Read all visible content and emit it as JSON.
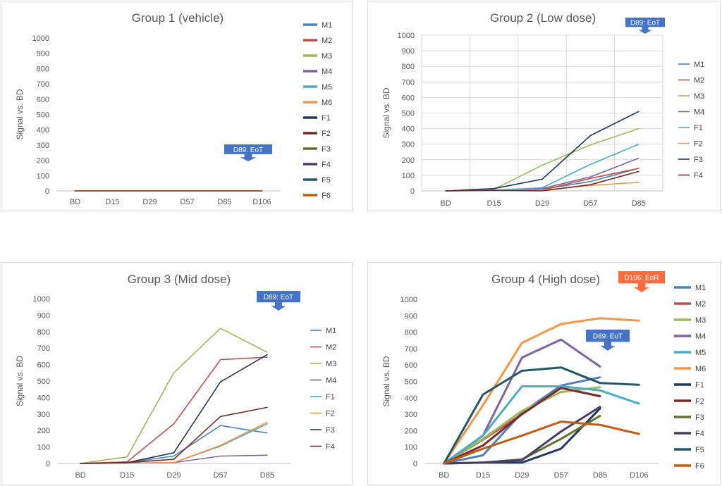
{
  "chart_data": [
    {
      "type": "line",
      "title": "Group 1 (vehicle)",
      "ylabel": "Signal  vs. BD",
      "xlabel": "",
      "categories": [
        "BD",
        "D15",
        "D29",
        "D57",
        "D85",
        "D106"
      ],
      "ylim": [
        0,
        1000
      ],
      "yticks": [
        0,
        100,
        200,
        300,
        400,
        500,
        600,
        700,
        800,
        900,
        1000
      ],
      "grid": "none",
      "legend": "right",
      "annotation": {
        "text": "D89: EoT",
        "color": "#4472c4",
        "position": "between D85 and D106"
      },
      "series": [
        {
          "name": "M1",
          "color": "#4f81bd",
          "values": [
            0,
            0,
            0,
            0,
            0,
            0
          ]
        },
        {
          "name": "M2",
          "color": "#c0504d",
          "values": [
            0,
            0,
            0,
            0,
            0,
            0
          ]
        },
        {
          "name": "M3",
          "color": "#9bbb59",
          "values": [
            0,
            0,
            0,
            0,
            0,
            0
          ]
        },
        {
          "name": "M4",
          "color": "#8064a2",
          "values": [
            0,
            0,
            0,
            0,
            0,
            0
          ]
        },
        {
          "name": "M5",
          "color": "#4bacc6",
          "values": [
            0,
            0,
            0,
            0,
            0,
            0
          ]
        },
        {
          "name": "M6",
          "color": "#f79646",
          "values": [
            0,
            0,
            0,
            0,
            0,
            0
          ]
        },
        {
          "name": "F1",
          "color": "#1f3864",
          "values": [
            0,
            0,
            0,
            0,
            0,
            0
          ]
        },
        {
          "name": "F2",
          "color": "#772c2a",
          "values": [
            0,
            0,
            0,
            0,
            0,
            0
          ]
        },
        {
          "name": "F3",
          "color": "#5f7530",
          "values": [
            0,
            0,
            0,
            0,
            0,
            0
          ]
        },
        {
          "name": "F4",
          "color": "#4d3b62",
          "values": [
            0,
            0,
            0,
            0,
            0,
            0
          ]
        },
        {
          "name": "F5",
          "color": "#215868",
          "values": [
            0,
            0,
            0,
            0,
            0,
            0
          ]
        },
        {
          "name": "F6",
          "color": "#c55a11",
          "values": [
            0,
            0,
            0,
            0,
            0,
            0
          ]
        }
      ]
    },
    {
      "type": "line",
      "title": "Group 2 (Low dose)",
      "ylabel": "Signal  vs. BD",
      "xlabel": "",
      "categories": [
        "BD",
        "D15",
        "D29",
        "D57",
        "D85"
      ],
      "ylim": [
        0,
        1000
      ],
      "yticks": [
        0,
        100,
        200,
        300,
        400,
        500,
        600,
        700,
        800,
        900,
        1000
      ],
      "grid": "horizontal and vertical",
      "legend": "right",
      "annotation": {
        "text": "D89: EoT",
        "color": "#4472c4",
        "position": "above D85"
      },
      "series": [
        {
          "name": "M1",
          "color": "#4f81bd",
          "values": [
            0,
            5,
            10,
            60,
            145
          ]
        },
        {
          "name": "M2",
          "color": "#c0504d",
          "values": [
            0,
            3,
            5,
            80,
            145
          ]
        },
        {
          "name": "M3",
          "color": "#9bbb59",
          "values": [
            0,
            10,
            165,
            295,
            400
          ]
        },
        {
          "name": "M4",
          "color": "#8064a2",
          "values": [
            0,
            5,
            15,
            90,
            210
          ]
        },
        {
          "name": "F1",
          "color": "#4bacc6",
          "values": [
            0,
            5,
            20,
            170,
            300
          ]
        },
        {
          "name": "F2",
          "color": "#f79646",
          "values": [
            0,
            3,
            5,
            35,
            55
          ]
        },
        {
          "name": "F3",
          "color": "#1f3864",
          "values": [
            0,
            15,
            75,
            355,
            510
          ]
        },
        {
          "name": "F4",
          "color": "#772c2a",
          "values": [
            0,
            3,
            0,
            40,
            125
          ]
        }
      ]
    },
    {
      "type": "line",
      "title": "Group 3 (Mid dose)",
      "ylabel": "Signal  vs. BD",
      "xlabel": "",
      "categories": [
        "BD",
        "D15",
        "D29",
        "D57",
        "D85"
      ],
      "ylim": [
        0,
        1000
      ],
      "yticks": [
        0,
        100,
        200,
        300,
        400,
        500,
        600,
        700,
        800,
        900,
        1000
      ],
      "grid": "none",
      "legend": "right",
      "annotation": {
        "text": "D89: EoT",
        "color": "#4472c4",
        "position": "above D85"
      },
      "series": [
        {
          "name": "M1",
          "color": "#4f81bd",
          "values": [
            0,
            5,
            45,
            230,
            185
          ]
        },
        {
          "name": "M2",
          "color": "#c0504d",
          "values": [
            0,
            10,
            240,
            630,
            645
          ]
        },
        {
          "name": "M3",
          "color": "#9bbb59",
          "values": [
            0,
            40,
            550,
            820,
            675
          ]
        },
        {
          "name": "M4",
          "color": "#8064a2",
          "values": [
            0,
            2,
            5,
            45,
            50
          ]
        },
        {
          "name": "F1",
          "color": "#4bacc6",
          "values": [
            0,
            2,
            5,
            105,
            240
          ]
        },
        {
          "name": "F2",
          "color": "#f79646",
          "values": [
            0,
            2,
            5,
            110,
            250
          ]
        },
        {
          "name": "F3",
          "color": "#1f3864",
          "values": [
            0,
            5,
            65,
            495,
            660
          ]
        },
        {
          "name": "F4",
          "color": "#772c2a",
          "values": [
            0,
            5,
            25,
            285,
            340
          ]
        }
      ]
    },
    {
      "type": "line",
      "title": "Group 4 (High dose)",
      "ylabel": "Signal  vs. BD",
      "xlabel": "",
      "categories": [
        "BD",
        "D15",
        "D29",
        "D57",
        "D85",
        "D106"
      ],
      "ylim": [
        0,
        1000
      ],
      "yticks": [
        0,
        100,
        200,
        300,
        400,
        500,
        600,
        700,
        800,
        900,
        1000
      ],
      "grid": "none",
      "legend": "right",
      "annotations": [
        {
          "text": "D89: EoT",
          "color": "#4472c4",
          "position": "above D85"
        },
        {
          "text": "D106: EoR",
          "color": "#ff6d3f",
          "position": "above D106"
        }
      ],
      "series": [
        {
          "name": "M1",
          "color": "#4f81bd",
          "values": [
            0,
            50,
            310,
            475,
            525,
            null
          ]
        },
        {
          "name": "M2",
          "color": "#c0504d",
          "values": [
            0,
            145,
            300,
            460,
            410,
            null
          ]
        },
        {
          "name": "M3",
          "color": "#9bbb59",
          "values": [
            0,
            150,
            320,
            435,
            465,
            null
          ]
        },
        {
          "name": "M4",
          "color": "#8064a2",
          "values": [
            0,
            170,
            645,
            755,
            590,
            null
          ]
        },
        {
          "name": "M5",
          "color": "#4bacc6",
          "values": [
            0,
            170,
            470,
            470,
            445,
            365
          ]
        },
        {
          "name": "M6",
          "color": "#f79646",
          "values": [
            0,
            355,
            735,
            850,
            885,
            870
          ]
        },
        {
          "name": "F1",
          "color": "#1f3864",
          "values": [
            0,
            5,
            5,
            90,
            335,
            null
          ]
        },
        {
          "name": "F2",
          "color": "#772c2a",
          "values": [
            0,
            110,
            300,
            460,
            410,
            null
          ]
        },
        {
          "name": "F3",
          "color": "#5f7530",
          "values": [
            0,
            5,
            25,
            150,
            290,
            null
          ]
        },
        {
          "name": "F4",
          "color": "#4d3b62",
          "values": [
            0,
            5,
            20,
            195,
            345,
            null
          ]
        },
        {
          "name": "F5",
          "color": "#215868",
          "values": [
            0,
            420,
            565,
            585,
            490,
            480
          ]
        },
        {
          "name": "F6",
          "color": "#c55a11",
          "values": [
            0,
            90,
            170,
            255,
            235,
            180
          ]
        }
      ]
    }
  ]
}
